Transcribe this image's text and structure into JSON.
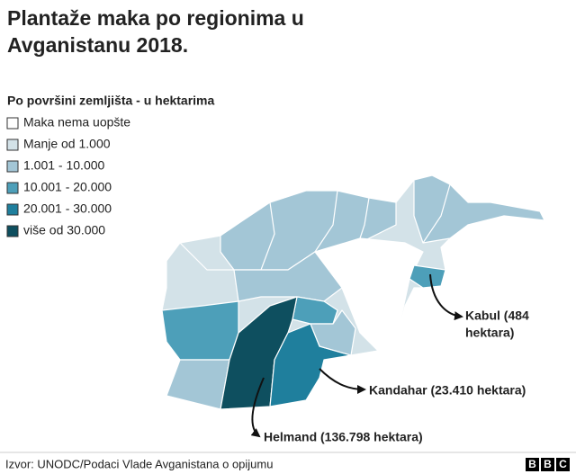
{
  "header": {
    "title_lines": [
      "Plantaže maka po regionima u",
      "Avganistanu 2018."
    ],
    "subtitle": "Po površini zemljišta - u hektarima"
  },
  "legend": [
    {
      "label": "Maka nema uopšte",
      "color": "#ffffff"
    },
    {
      "label": "Manje od 1.000",
      "color": "#d3e2e8"
    },
    {
      "label": "1.001 - 10.000",
      "color": "#a3c6d6"
    },
    {
      "label": "10.001 - 20.000",
      "color": "#4d9fb9"
    },
    {
      "label": "20.001 - 30.000",
      "color": "#1f7f9d"
    },
    {
      "label": "više od 30.000",
      "color": "#0e4f5f"
    }
  ],
  "annotations": {
    "kabul": [
      "Kabul (484",
      "hektara)"
    ],
    "kandahar": "Kandahar (23.410 hektara)",
    "helmand": "Helmand (136.798 hektara)"
  },
  "footer": {
    "source": "Izvor: UNODC/Podaci Vlade Avganistana o opijumu",
    "logo": [
      "B",
      "B",
      "C"
    ]
  }
}
